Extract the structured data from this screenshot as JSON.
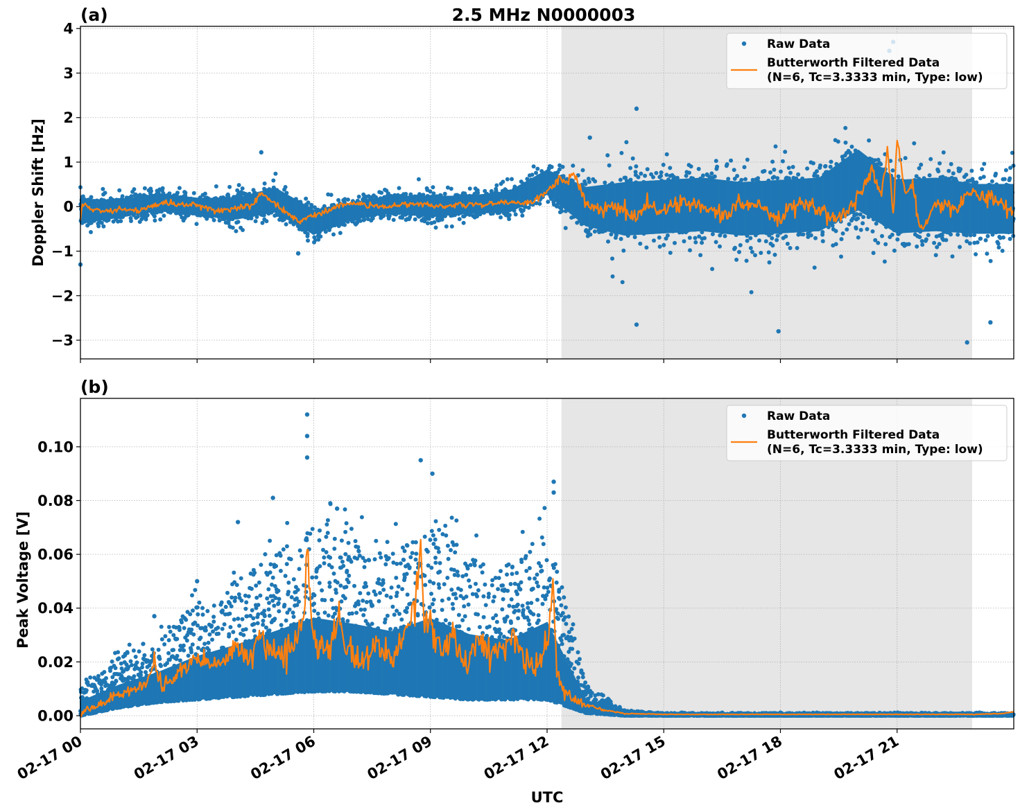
{
  "chart_data": [
    {
      "panel": "(a)",
      "type": "scatter",
      "title": "2.5 MHz N0000003",
      "xlabel": "",
      "ylabel": "Doppler Shift [Hz]",
      "x_unit": "hours UTC since 02-17 00",
      "xlim": [
        0,
        24
      ],
      "ylim": [
        -3.42,
        4.05
      ],
      "yticks": [
        4,
        3,
        2,
        1,
        0,
        -1,
        -2,
        -3
      ],
      "ytick_labels": [
        "4",
        "3",
        "2",
        "1",
        "0",
        "−1",
        "−2",
        "−3"
      ],
      "xticks": [
        0,
        3,
        6,
        9,
        12,
        15,
        18,
        21
      ],
      "grid": true,
      "legend_position": "top-right",
      "shaded_region": {
        "x_start": 12.37,
        "x_end": 22.93,
        "color": "#e6e6e6"
      },
      "series": [
        {
          "name": "Raw Data",
          "style": "points",
          "color": "#1f77b4",
          "hourly_center": [
            -0.1,
            -0.05,
            0.1,
            0.0,
            -0.05,
            0.15,
            -0.35,
            -0.1,
            0.05,
            0.0,
            0.05,
            0.1,
            0.55,
            0.0,
            -0.05,
            0.0,
            0.05,
            -0.05,
            0.0,
            0.05,
            0.6,
            0.0,
            0.05,
            -0.05
          ],
          "hourly_spread": [
            0.35,
            0.25,
            0.25,
            0.25,
            0.3,
            0.35,
            0.35,
            0.25,
            0.25,
            0.3,
            0.25,
            0.3,
            0.35,
            0.55,
            0.75,
            0.75,
            0.75,
            0.75,
            0.75,
            0.75,
            0.85,
            0.75,
            0.75,
            0.7
          ],
          "notable_points": [
            {
              "x": 4.65,
              "y": 1.22
            },
            {
              "x": 13.1,
              "y": 1.55
            },
            {
              "x": 14.3,
              "y": 2.2
            },
            {
              "x": 20.9,
              "y": 3.7
            },
            {
              "x": 20.8,
              "y": 3.5
            },
            {
              "x": 14.3,
              "y": -2.65
            },
            {
              "x": 17.95,
              "y": -2.8
            },
            {
              "x": 22.8,
              "y": -3.05
            },
            {
              "x": 23.4,
              "y": -2.6
            },
            {
              "x": 5.6,
              "y": -1.05
            },
            {
              "x": 0.0,
              "y": -1.3
            }
          ]
        },
        {
          "name": "Butterworth Filtered Data",
          "name_line2": "(N=6, Tc=3.3333 min, Type: low)",
          "style": "line",
          "color": "#ff7f0e",
          "x": [
            0,
            0.05,
            0.3,
            0.6,
            1.0,
            1.5,
            2.0,
            2.2,
            2.5,
            3.0,
            3.5,
            4.0,
            4.4,
            4.65,
            4.8,
            5.2,
            5.6,
            5.8,
            6.2,
            6.7,
            7.2,
            7.8,
            8.3,
            8.8,
            9.3,
            9.8,
            10.4,
            11.0,
            11.6,
            12.0,
            12.3,
            12.5,
            12.7,
            12.85,
            13.0,
            13.2,
            13.5,
            14.0,
            14.2,
            14.6,
            15.0,
            15.5,
            16.0,
            16.5,
            17.0,
            17.5,
            18.0,
            18.5,
            19.0,
            19.5,
            19.9,
            20.2,
            20.4,
            20.6,
            20.75,
            20.9,
            21.0,
            21.2,
            21.4,
            21.6,
            22.0,
            22.5,
            23.0,
            23.5,
            24.0
          ],
          "y": [
            -0.3,
            0.05,
            -0.05,
            -0.1,
            -0.05,
            -0.1,
            0.05,
            0.1,
            0.05,
            0.05,
            -0.1,
            -0.05,
            0.05,
            0.3,
            0.2,
            -0.05,
            -0.35,
            -0.25,
            -0.15,
            0.05,
            0.05,
            0.0,
            0.05,
            0.05,
            0.0,
            0.05,
            0.05,
            0.1,
            0.1,
            0.3,
            0.65,
            0.55,
            0.8,
            0.4,
            0.05,
            0.0,
            -0.05,
            -0.05,
            -0.3,
            0.05,
            -0.1,
            0.15,
            -0.05,
            -0.2,
            0.1,
            0.0,
            -0.25,
            0.1,
            -0.05,
            -0.3,
            0.1,
            0.6,
            0.9,
            0.2,
            1.4,
            -0.2,
            1.6,
            0.3,
            0.5,
            -0.5,
            0.05,
            0.0,
            0.35,
            0.1,
            -0.1
          ]
        }
      ]
    },
    {
      "panel": "(b)",
      "type": "scatter",
      "title": "",
      "xlabel": "UTC",
      "ylabel": "Peak Voltage [V]",
      "x_unit": "hours UTC since 02-17 00",
      "xlim": [
        0,
        24
      ],
      "ylim": [
        -0.0049,
        0.118
      ],
      "yticks": [
        0.1,
        0.08,
        0.06,
        0.04,
        0.02,
        0.0
      ],
      "ytick_labels": [
        "0.10",
        "0.08",
        "0.06",
        "0.04",
        "0.02",
        "0.00"
      ],
      "xticks": [
        0,
        3,
        6,
        9,
        12,
        15,
        18,
        21
      ],
      "xtick_labels": [
        "02-17 00",
        "02-17 03",
        "02-17 06",
        "02-17 09",
        "02-17 12",
        "02-17 15",
        "02-17 18",
        "02-17 21"
      ],
      "grid": true,
      "legend_position": "top-right",
      "shaded_region": {
        "x_start": 12.37,
        "x_end": 22.93,
        "color": "#e6e6e6"
      },
      "series": [
        {
          "name": "Raw Data",
          "style": "points",
          "color": "#1f77b4",
          "hourly_low": [
            0.0,
            0.003,
            0.005,
            0.006,
            0.007,
            0.008,
            0.009,
            0.009,
            0.008,
            0.007,
            0.006,
            0.006,
            0.006,
            0.001,
            0.0,
            0.0,
            0.0,
            0.0,
            0.0,
            0.0,
            0.0,
            0.0,
            0.0,
            0.0
          ],
          "hourly_high": [
            0.012,
            0.022,
            0.03,
            0.042,
            0.05,
            0.06,
            0.07,
            0.065,
            0.06,
            0.072,
            0.06,
            0.055,
            0.07,
            0.012,
            0.002,
            0.001,
            0.001,
            0.001,
            0.001,
            0.001,
            0.001,
            0.001,
            0.001,
            0.001
          ],
          "notable_points": [
            {
              "x": 5.83,
              "y": 0.112
            },
            {
              "x": 5.83,
              "y": 0.104
            },
            {
              "x": 5.83,
              "y": 0.096
            },
            {
              "x": 8.75,
              "y": 0.095
            },
            {
              "x": 9.05,
              "y": 0.09
            },
            {
              "x": 12.17,
              "y": 0.087
            },
            {
              "x": 12.17,
              "y": 0.083
            },
            {
              "x": 4.95,
              "y": 0.081
            },
            {
              "x": 6.6,
              "y": 0.077
            },
            {
              "x": 4.05,
              "y": 0.072
            },
            {
              "x": 1.9,
              "y": 0.037
            },
            {
              "x": 3.0,
              "y": 0.05
            }
          ]
        },
        {
          "name": "Butterworth Filtered Data",
          "name_line2": "(N=6, Tc=3.3333 min, Type: low)",
          "style": "line",
          "color": "#ff7f0e",
          "x": [
            0,
            0.3,
            0.6,
            1.0,
            1.4,
            1.7,
            1.9,
            2.1,
            2.5,
            3.0,
            3.3,
            3.6,
            4.0,
            4.3,
            4.6,
            4.9,
            5.2,
            5.5,
            5.75,
            5.83,
            5.95,
            6.2,
            6.5,
            6.65,
            6.8,
            7.2,
            7.6,
            8.0,
            8.3,
            8.6,
            8.75,
            8.85,
            9.0,
            9.3,
            9.6,
            9.9,
            10.2,
            10.5,
            10.8,
            11.1,
            11.4,
            11.7,
            12.0,
            12.15,
            12.25,
            12.4,
            12.7,
            13.0,
            13.5,
            14.0,
            15.0,
            18.0,
            21.0,
            23.0,
            23.7,
            24.0
          ],
          "y": [
            0.001,
            0.003,
            0.005,
            0.008,
            0.01,
            0.012,
            0.021,
            0.01,
            0.015,
            0.022,
            0.02,
            0.018,
            0.026,
            0.02,
            0.03,
            0.025,
            0.022,
            0.028,
            0.038,
            0.066,
            0.03,
            0.025,
            0.028,
            0.039,
            0.024,
            0.02,
            0.026,
            0.022,
            0.028,
            0.04,
            0.064,
            0.03,
            0.035,
            0.025,
            0.03,
            0.02,
            0.028,
            0.022,
            0.025,
            0.03,
            0.022,
            0.02,
            0.025,
            0.049,
            0.018,
            0.01,
            0.006,
            0.004,
            0.002,
            0.0008,
            0.0005,
            0.0005,
            0.0005,
            0.0005,
            0.0008,
            0.0015
          ]
        }
      ]
    }
  ],
  "figure": {
    "title": "2.5 MHz N0000003",
    "panel_labels": [
      "(a)",
      "(b)"
    ]
  },
  "legend": {
    "raw_label": "Raw Data",
    "filtered_label_line1": "Butterworth Filtered Data",
    "filtered_label_line2": "(N=6, Tc=3.3333 min, Type: low)"
  },
  "x_axis": {
    "label": "UTC",
    "tick_labels": [
      "02-17 00",
      "02-17 03",
      "02-17 06",
      "02-17 09",
      "02-17 12",
      "02-17 15",
      "02-17 18",
      "02-17 21"
    ]
  }
}
